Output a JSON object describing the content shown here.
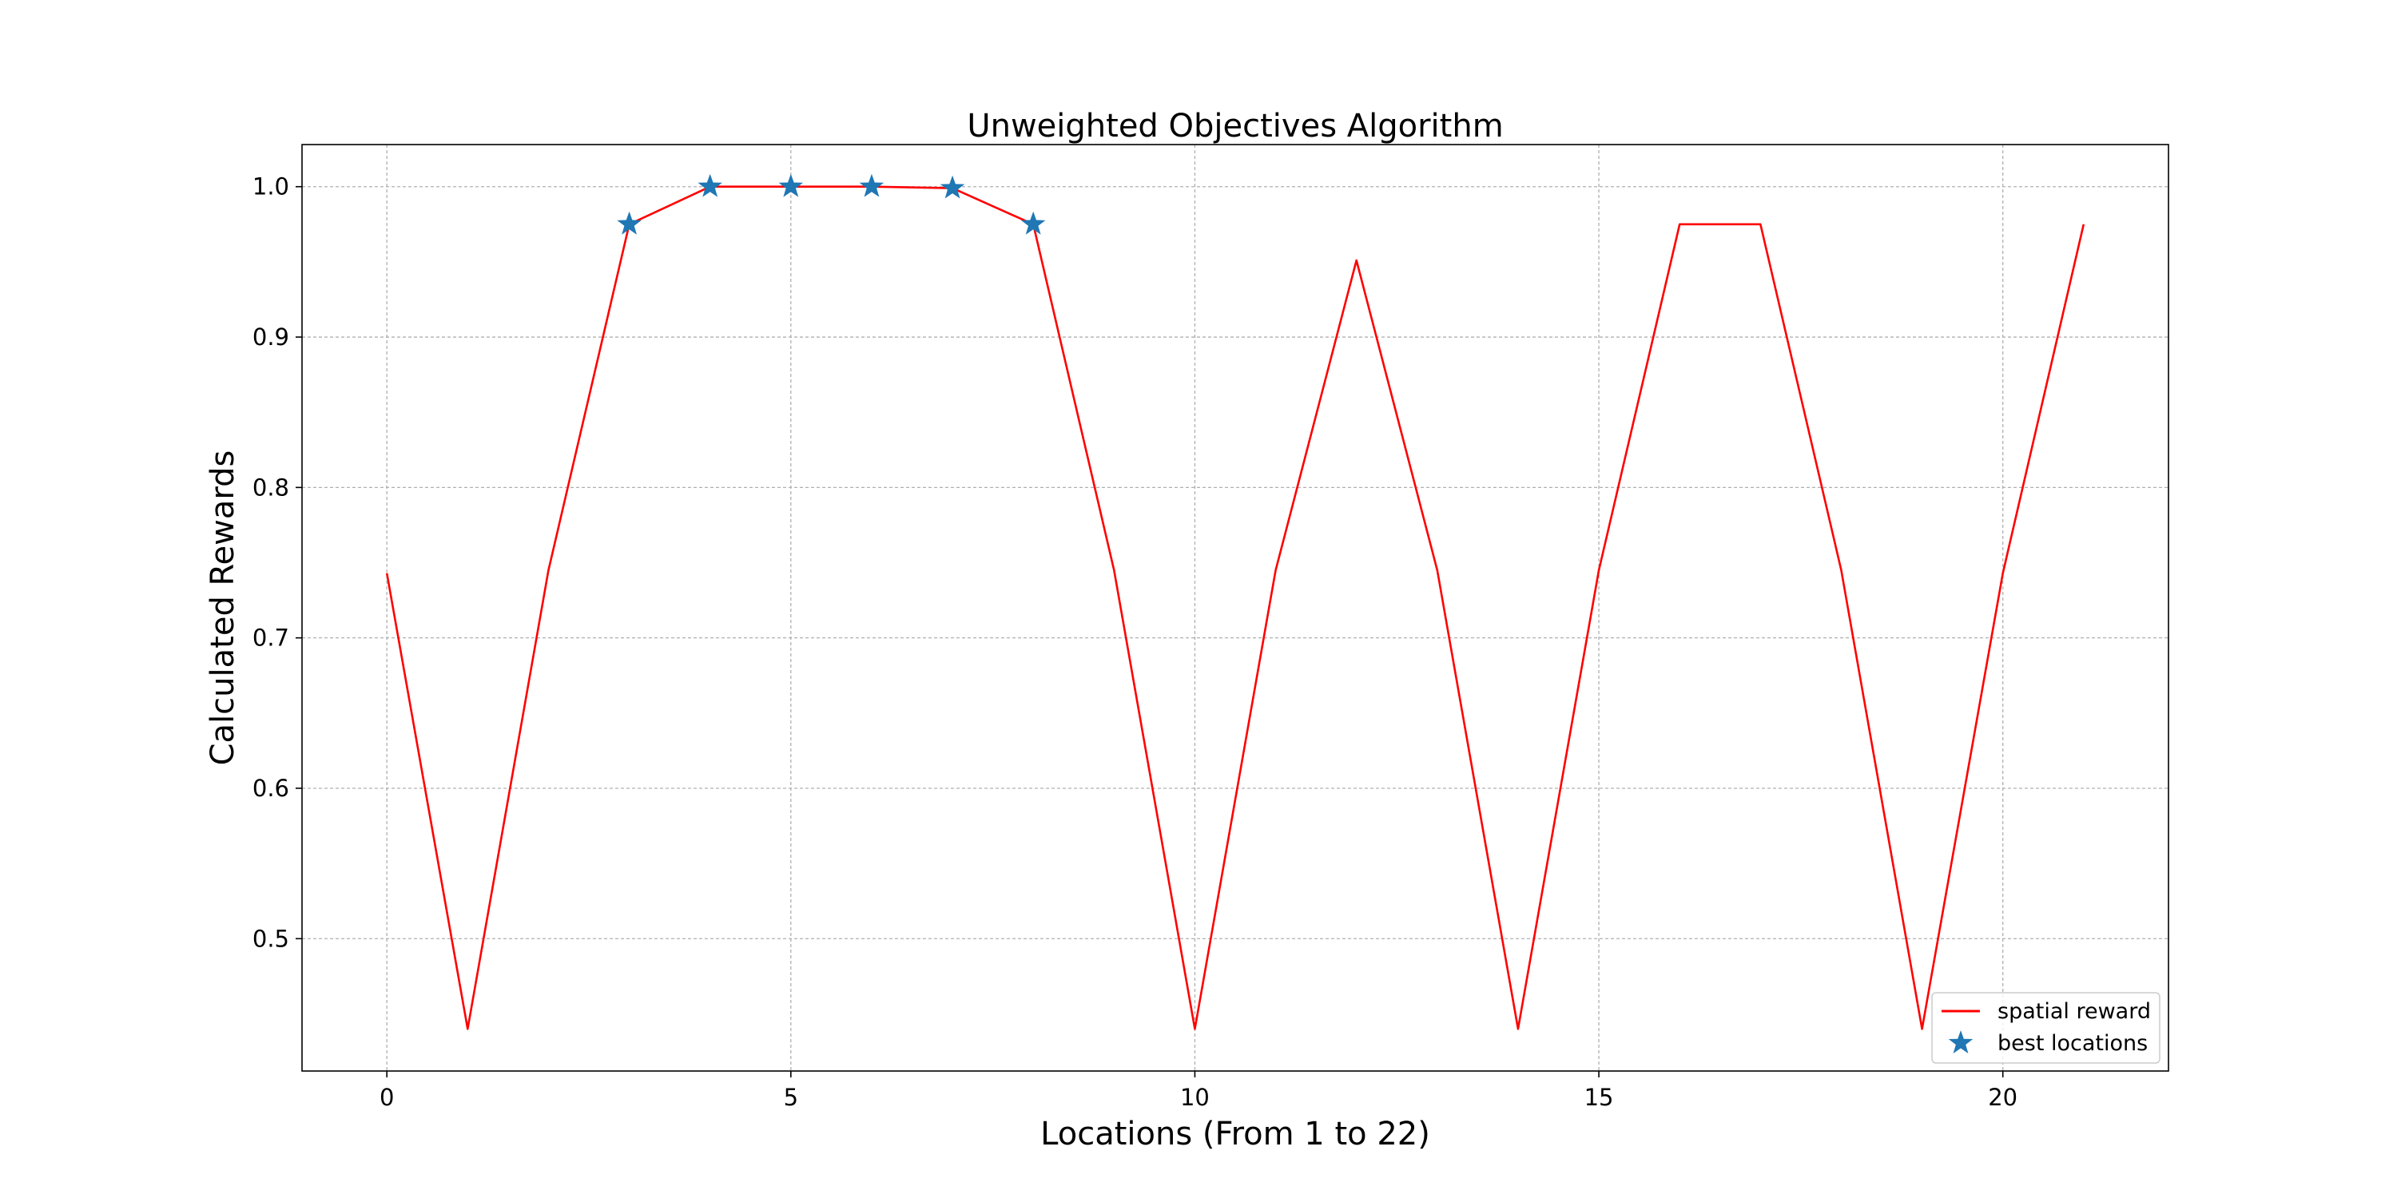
{
  "chart_data": {
    "type": "line",
    "title": "Unweighted Objectives Algorithm",
    "xlabel": "Locations (From 1 to 22)",
    "ylabel": "Calculated Rewards",
    "xlim": [
      -1.05,
      22.05
    ],
    "ylim": [
      0.412,
      1.028
    ],
    "xticks": [
      0,
      5,
      10,
      15,
      20
    ],
    "xtick_labels": [
      "0",
      "5",
      "10",
      "15",
      "20"
    ],
    "yticks": [
      0.5,
      0.6,
      0.7,
      0.8,
      0.9,
      1.0
    ],
    "ytick_labels": [
      "0.5",
      "0.6",
      "0.7",
      "0.8",
      "0.9",
      "1.0"
    ],
    "grid": true,
    "legend_position": "lower-right",
    "series": [
      {
        "name": "spatial reward",
        "kind": "line",
        "color": "#ff0000",
        "x": [
          0,
          1,
          2,
          3,
          4,
          5,
          6,
          7,
          8,
          9,
          10,
          11,
          12,
          13,
          14,
          15,
          16,
          17,
          18,
          19,
          20,
          21
        ],
        "y": [
          0.743,
          0.44,
          0.745,
          0.975,
          1.0,
          1.0,
          1.0,
          0.999,
          0.975,
          0.745,
          0.44,
          0.745,
          0.951,
          0.745,
          0.44,
          0.745,
          0.975,
          0.975,
          0.745,
          0.44,
          0.743,
          0.975
        ]
      },
      {
        "name": "best locations",
        "kind": "scatter",
        "marker": "star",
        "color": "#1f77b4",
        "x": [
          3,
          4,
          5,
          6,
          7,
          8
        ],
        "y": [
          0.975,
          1.0,
          1.0,
          1.0,
          0.999,
          0.975
        ]
      }
    ]
  }
}
